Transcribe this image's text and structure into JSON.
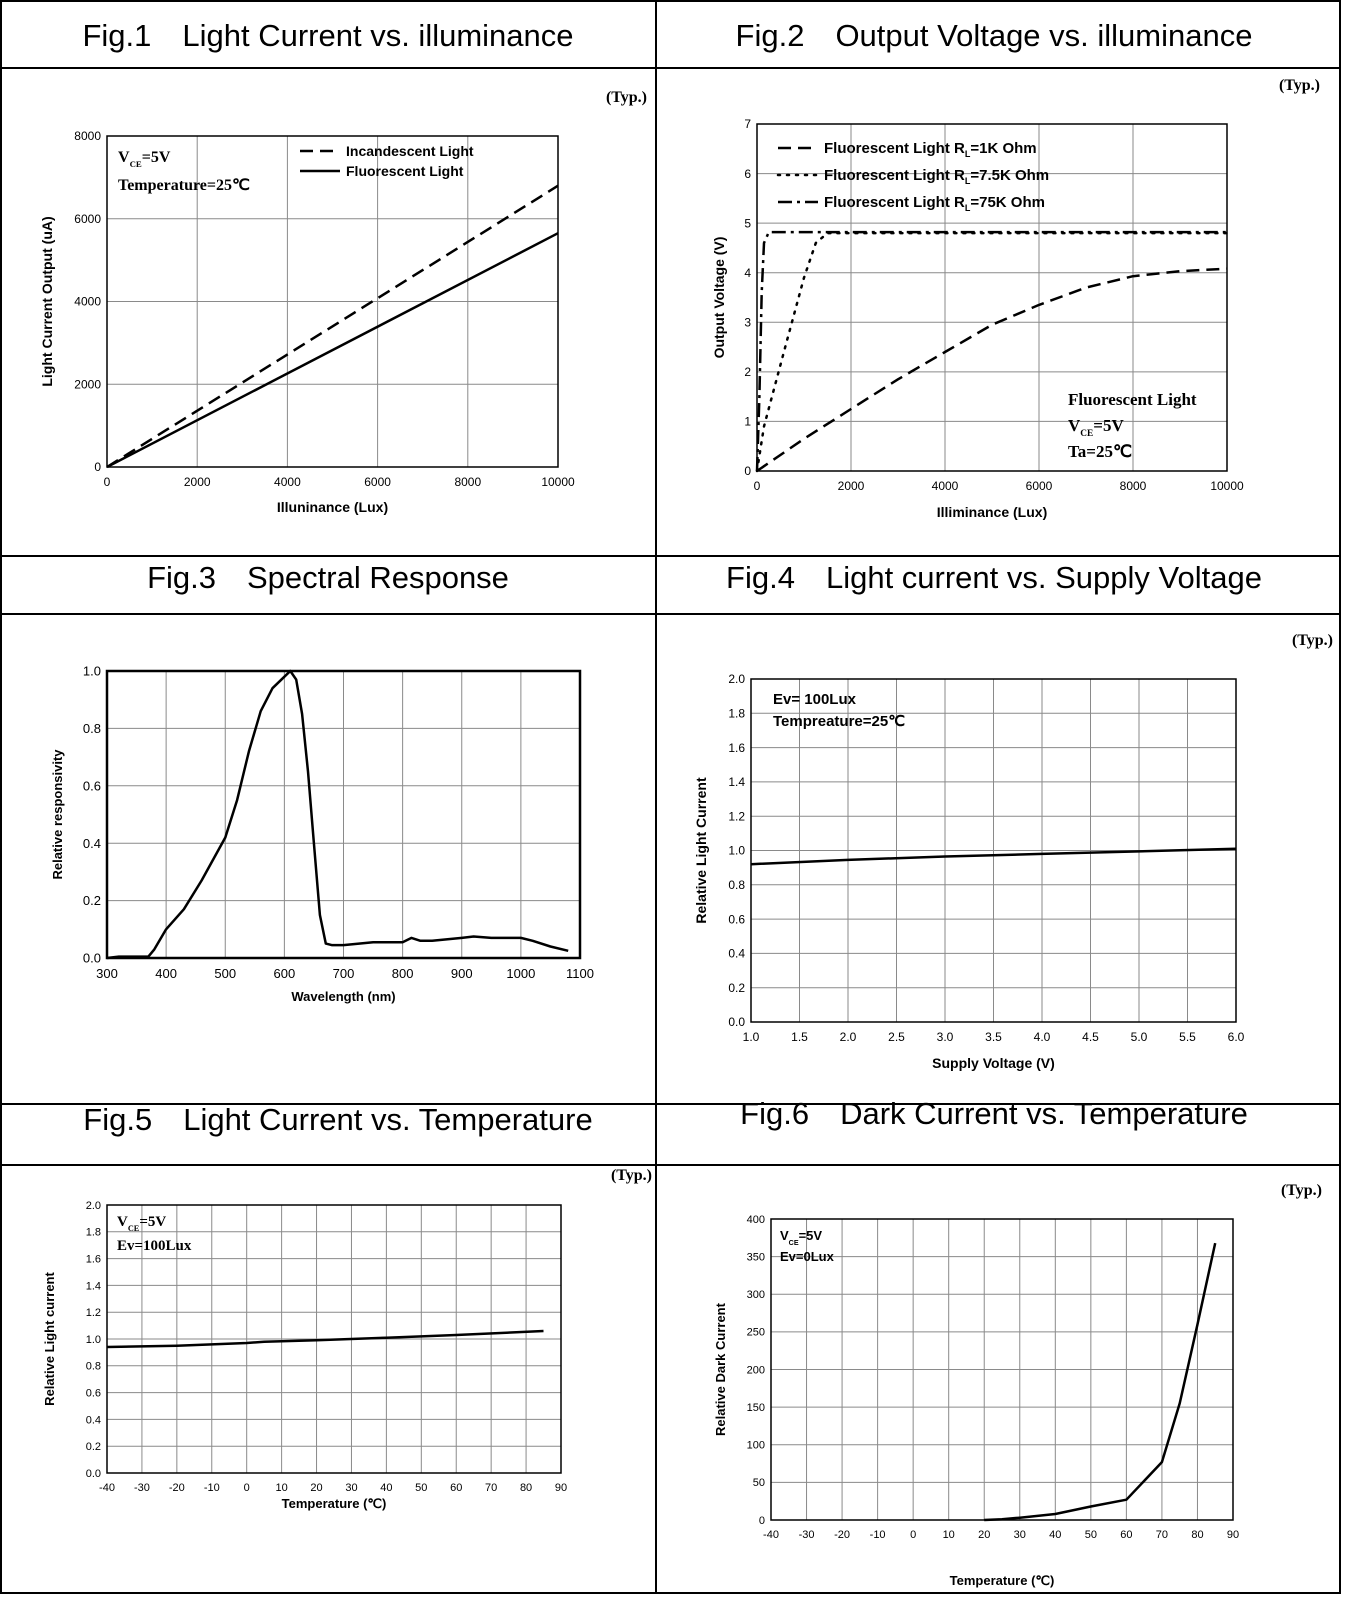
{
  "typ_label": "(Typ.)",
  "figures": [
    {
      "header": "Fig.1　Light Current vs. illuminance"
    },
    {
      "header": "Fig.2　Output Voltage vs. illuminance"
    },
    {
      "header": "Fig.3　Spectral Response"
    },
    {
      "header": "Fig.4　Light current vs. Supply Voltage"
    },
    {
      "header": "Fig.5　Light Current vs. Temperature"
    },
    {
      "header": "Fig.6　Dark Current vs. Temperature"
    }
  ],
  "chart_data": [
    {
      "type": "line",
      "xlabel": "Illuninance (Lux)",
      "ylabel": "Light Current Output (uA)",
      "xlim": [
        0,
        10000
      ],
      "ylim": [
        0,
        8000
      ],
      "xticks": [
        0,
        2000,
        4000,
        6000,
        8000,
        10000
      ],
      "yticks": [
        0,
        2000,
        4000,
        6000,
        8000
      ],
      "grid": true,
      "annotations": [
        {
          "lines": [
            {
              "main": "V",
              "sub": "CE",
              "rest": "=5V"
            },
            {
              "main": "Temperature=25℃"
            }
          ],
          "position": "top-left"
        }
      ],
      "legend": {
        "position": "top-center"
      },
      "series": [
        {
          "name": "Incandescent Light",
          "style": "dashed",
          "x": [
            0,
            10000
          ],
          "y": [
            0,
            6800
          ]
        },
        {
          "name": "Fluorescent Light",
          "style": "solid",
          "x": [
            0,
            10000
          ],
          "y": [
            0,
            5650
          ]
        }
      ]
    },
    {
      "type": "line",
      "xlabel": "Illiminance (Lux)",
      "ylabel": "Output Voltage (V)",
      "xlim": [
        0,
        10000
      ],
      "ylim": [
        0,
        7
      ],
      "xticks": [
        0,
        2000,
        4000,
        6000,
        8000,
        10000
      ],
      "yticks": [
        0,
        1,
        2,
        3,
        4,
        5,
        6,
        7
      ],
      "grid": true,
      "annotations": [
        {
          "lines": [
            {
              "main": "Fluorescent Light"
            },
            {
              "main": "V",
              "sub": "CE",
              "rest": "=5V"
            },
            {
              "main": "Ta=25℃"
            }
          ],
          "position": "bottom-right"
        }
      ],
      "legend": {
        "position": "top-left"
      },
      "series": [
        {
          "name": "Fluorescent Light  R",
          "name_sub": "L",
          "name_rest": "=1K Ohm",
          "style": "dashed",
          "x": [
            0,
            1000,
            2000,
            3000,
            4000,
            5000,
            6000,
            7000,
            8000,
            9000,
            10000
          ],
          "y": [
            0,
            0.65,
            1.25,
            1.85,
            2.4,
            2.95,
            3.35,
            3.7,
            3.93,
            4.03,
            4.08
          ]
        },
        {
          "name": "Fluorescent Light  R",
          "name_sub": "L",
          "name_rest": "=7.5K Ohm",
          "style": "dotted",
          "x": [
            0,
            150,
            600,
            1000,
            1250,
            1500,
            10000
          ],
          "y": [
            0,
            0.9,
            2.5,
            3.9,
            4.6,
            4.8,
            4.8
          ]
        },
        {
          "name": "Fluorescent Light  R",
          "name_sub": "L",
          "name_rest": "=75K Ohm",
          "style": "dashdot",
          "x": [
            0,
            50,
            100,
            150,
            250,
            10000
          ],
          "y": [
            0,
            1.5,
            3.6,
            4.6,
            4.82,
            4.82
          ]
        }
      ]
    },
    {
      "type": "line",
      "xlabel": "Wavelength (nm)",
      "ylabel": "Relative responsivity",
      "xlim": [
        300,
        1100
      ],
      "ylim": [
        0,
        1.0
      ],
      "xticks": [
        300,
        400,
        500,
        600,
        700,
        800,
        900,
        1000,
        1100
      ],
      "yticks": [
        0.0,
        0.2,
        0.4,
        0.6,
        0.8,
        1.0
      ],
      "grid": true,
      "series": [
        {
          "style": "solid",
          "x": [
            300,
            320,
            370,
            380,
            400,
            430,
            460,
            500,
            520,
            540,
            560,
            580,
            600,
            610,
            620,
            630,
            640,
            650,
            660,
            670,
            680,
            700,
            750,
            800,
            815,
            830,
            850,
            900,
            920,
            950,
            1000,
            1020,
            1050,
            1080
          ],
          "y": [
            0.0,
            0.005,
            0.005,
            0.03,
            0.1,
            0.17,
            0.27,
            0.42,
            0.55,
            0.72,
            0.86,
            0.94,
            0.98,
            1.0,
            0.97,
            0.85,
            0.65,
            0.4,
            0.15,
            0.05,
            0.045,
            0.045,
            0.055,
            0.055,
            0.07,
            0.06,
            0.06,
            0.07,
            0.075,
            0.07,
            0.07,
            0.06,
            0.04,
            0.025
          ]
        }
      ]
    },
    {
      "type": "line",
      "xlabel": "Supply Voltage (V)",
      "ylabel": "Relative Light Current",
      "xlim": [
        1.0,
        6.0
      ],
      "ylim": [
        0.0,
        2.0
      ],
      "xticks": [
        1.0,
        1.5,
        2.0,
        2.5,
        3.0,
        3.5,
        4.0,
        4.5,
        5.0,
        5.5,
        6.0
      ],
      "yticks": [
        0.0,
        0.2,
        0.4,
        0.6,
        0.8,
        1.0,
        1.2,
        1.4,
        1.6,
        1.8,
        2.0
      ],
      "grid": true,
      "annotations": [
        {
          "lines": [
            {
              "main": "Ev= 100Lux"
            },
            {
              "main": "Tempreature=25℃"
            }
          ],
          "position": "top-left"
        }
      ],
      "series": [
        {
          "style": "solid",
          "x": [
            1.0,
            2.0,
            3.0,
            4.0,
            5.0,
            6.0
          ],
          "y": [
            0.92,
            0.945,
            0.965,
            0.98,
            0.995,
            1.01
          ]
        }
      ]
    },
    {
      "type": "line",
      "xlabel": "Temperature (℃)",
      "ylabel": "Relative Light current",
      "xlim": [
        -40,
        90
      ],
      "ylim": [
        0.0,
        2.0
      ],
      "xticks": [
        -40,
        -30,
        -20,
        -10,
        0,
        10,
        20,
        30,
        40,
        50,
        60,
        70,
        80,
        90
      ],
      "yticks": [
        0.0,
        0.2,
        0.4,
        0.6,
        0.8,
        1.0,
        1.2,
        1.4,
        1.6,
        1.8,
        2.0
      ],
      "grid": true,
      "annotations": [
        {
          "lines": [
            {
              "main": "V",
              "sub": "CE",
              "rest": "=5V"
            },
            {
              "main": "Ev=100Lux"
            }
          ],
          "position": "top-left"
        }
      ],
      "series": [
        {
          "style": "solid",
          "x": [
            -40,
            -20,
            0,
            5,
            20,
            40,
            60,
            85
          ],
          "y": [
            0.94,
            0.95,
            0.97,
            0.98,
            0.99,
            1.01,
            1.03,
            1.06
          ]
        }
      ]
    },
    {
      "type": "line",
      "xlabel": "Temperature (℃)",
      "ylabel": "Relative Dark Current",
      "xlim": [
        -40,
        90
      ],
      "ylim": [
        0,
        400
      ],
      "xticks": [
        -40,
        -30,
        -20,
        -10,
        0,
        10,
        20,
        30,
        40,
        50,
        60,
        70,
        80,
        90
      ],
      "yticks": [
        0,
        50,
        100,
        150,
        200,
        250,
        300,
        350,
        400
      ],
      "grid": true,
      "annotations": [
        {
          "lines": [
            {
              "main": "V",
              "sub": "CE",
              "rest": "=5V"
            },
            {
              "main": "Ev=0Lux"
            }
          ],
          "position": "top-left"
        }
      ],
      "series": [
        {
          "style": "solid",
          "x": [
            20,
            25,
            30,
            40,
            50,
            60,
            70,
            75,
            80,
            85
          ],
          "y": [
            0,
            1,
            3,
            8,
            18,
            27,
            77,
            155,
            260,
            368
          ]
        }
      ]
    }
  ]
}
